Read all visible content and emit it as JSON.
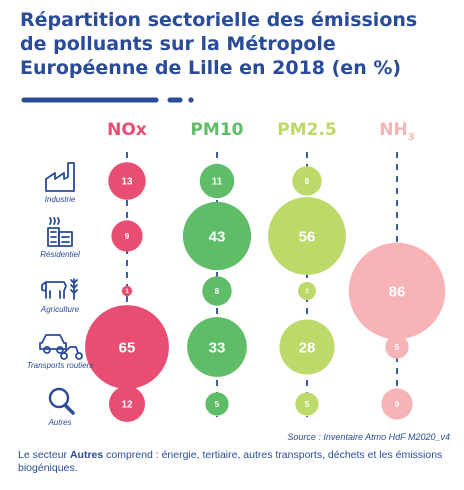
{
  "title": "Répartition sectorielle des émissions de polluants sur la Métropole Européenne de Lille en 2018 (en %)",
  "source": "Source : Inventaire Atmo HdF M2020_v4",
  "note": {
    "prefix": "Le secteur ",
    "bold": "Autres",
    "suffix": " comprend : énergie, tertiaire, autres transports, déchets et les émissions biogéniques."
  },
  "colors": {
    "title": "#2a4b97",
    "nox": "#e84d72",
    "pm10": "#5fbd68",
    "pm25": "#bcd96a",
    "nh3": "#f7b3b6"
  },
  "chart_data": {
    "type": "bubble-matrix",
    "title": "Répartition sectorielle des émissions de polluants sur la Métropole Européenne de Lille en 2018 (en %)",
    "unit": "%",
    "pollutants": [
      {
        "name": "NOx",
        "sub": "",
        "color": "#e84d72"
      },
      {
        "name": "PM10",
        "sub": "",
        "color": "#5fbd68"
      },
      {
        "name": "PM2.5",
        "sub": "",
        "color": "#bcd96a"
      },
      {
        "name": "NH",
        "sub": "3",
        "color": "#f7b3b6"
      }
    ],
    "sectors": [
      {
        "name": "Industrie",
        "icon": "factory-icon"
      },
      {
        "name": "Résidentiel",
        "icon": "building-icon"
      },
      {
        "name": "Agriculture",
        "icon": "cow-wheat-icon"
      },
      {
        "name": "Transports routiers",
        "icon": "vehicles-icon"
      },
      {
        "name": "Autres",
        "icon": "magnifier-icon"
      }
    ],
    "values": [
      [
        13,
        11,
        8,
        null
      ],
      [
        9,
        43,
        56,
        null
      ],
      [
        1,
        8,
        3,
        86
      ],
      [
        65,
        33,
        28,
        5
      ],
      [
        12,
        5,
        5,
        9
      ]
    ]
  }
}
